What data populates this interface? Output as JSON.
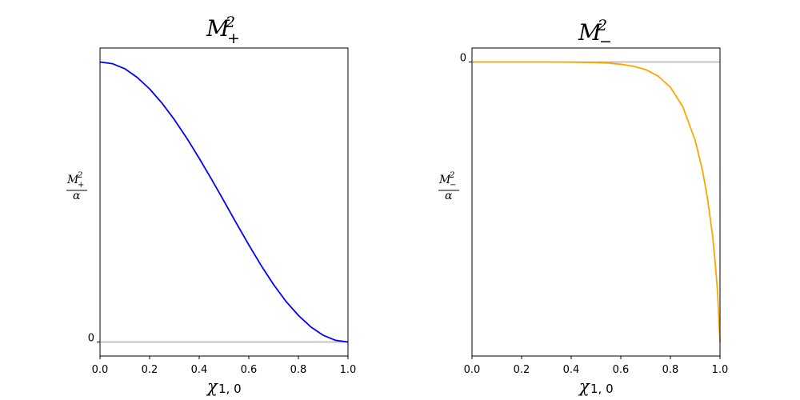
{
  "chart_data": [
    {
      "type": "line",
      "title": {
        "base": "M",
        "sup": "2",
        "sub": "+"
      },
      "xlabel": {
        "base": "χ",
        "sub": "1, 0"
      },
      "ylabel": {
        "num_base": "M",
        "num_sup": "2",
        "num_sub": "+",
        "den": "α"
      },
      "xlim": [
        0,
        1
      ],
      "x_ticks": [
        "0.0",
        "0.2",
        "0.4",
        "0.6",
        "0.8",
        "1.0"
      ],
      "y_ticks": [
        {
          "value": 0,
          "label": "0"
        }
      ],
      "ylim": [
        -0.05,
        1.05
      ],
      "reference_line": {
        "y": 0,
        "color": "#b0b0b0"
      },
      "series": [
        {
          "color": "#0000ff",
          "x": [
            0.0,
            0.05,
            0.1,
            0.15,
            0.2,
            0.25,
            0.3,
            0.35,
            0.4,
            0.45,
            0.5,
            0.55,
            0.6,
            0.65,
            0.7,
            0.75,
            0.8,
            0.85,
            0.9,
            0.95,
            1.0
          ],
          "y": [
            1.0,
            0.994,
            0.976,
            0.945,
            0.904,
            0.853,
            0.794,
            0.728,
            0.656,
            0.581,
            0.503,
            0.424,
            0.347,
            0.273,
            0.205,
            0.145,
            0.095,
            0.054,
            0.024,
            0.006,
            0.0
          ]
        }
      ]
    },
    {
      "type": "line",
      "title": {
        "base": "M",
        "sup": "2",
        "sub": "−"
      },
      "xlabel": {
        "base": "χ",
        "sub": "1, 0"
      },
      "ylabel": {
        "num_base": "M",
        "num_sup": "2",
        "num_sub": "−",
        "den": "α"
      },
      "xlim": [
        0,
        1
      ],
      "x_ticks": [
        "0.0",
        "0.2",
        "0.4",
        "0.6",
        "0.8",
        "1.0"
      ],
      "y_ticks": [
        {
          "value": 0,
          "label": "0"
        }
      ],
      "ylim": [
        -1.05,
        0.05
      ],
      "reference_line": {
        "y": 0,
        "color": "#b0b0b0"
      },
      "series": [
        {
          "color": "#ffa500",
          "x": [
            0.0,
            0.1,
            0.2,
            0.3,
            0.4,
            0.5,
            0.55,
            0.6,
            0.65,
            0.7,
            0.75,
            0.8,
            0.85,
            0.9,
            0.93,
            0.95,
            0.97,
            0.98,
            0.99,
            1.0
          ],
          "y": [
            0.0,
            0.0,
            0.0,
            0.0,
            -0.0005,
            -0.002,
            -0.004,
            -0.008,
            -0.015,
            -0.027,
            -0.05,
            -0.09,
            -0.16,
            -0.28,
            -0.39,
            -0.49,
            -0.62,
            -0.71,
            -0.82,
            -1.0
          ]
        }
      ]
    }
  ]
}
